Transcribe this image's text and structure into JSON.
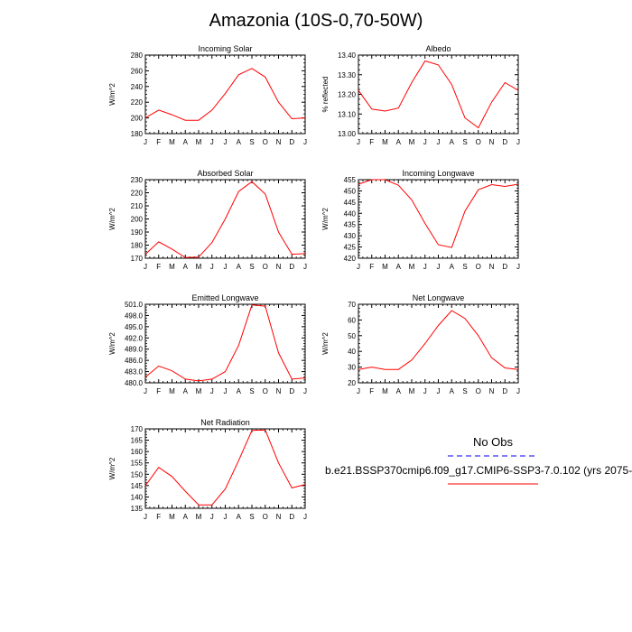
{
  "title": "Amazonia (10S-0,70-50W)",
  "legend": {
    "obs_label": "No Obs",
    "obs_color": "#0000ff",
    "model_label": "b.e21.BSSP370cmip6.f09_g17.CMIP6-SSP3-7.0.102 (yrs 2075-",
    "model_color": "#ff0000"
  },
  "chart_data": [
    {
      "type": "line",
      "title": "Incoming Solar",
      "ylabel": "W/m^2",
      "categories": [
        "J",
        "F",
        "M",
        "A",
        "M",
        "J",
        "J",
        "A",
        "S",
        "O",
        "N",
        "D",
        "J"
      ],
      "ylim": [
        180,
        280
      ],
      "yticks": [
        "180",
        "200",
        "220",
        "240",
        "260",
        "280"
      ],
      "values": [
        200,
        210,
        204,
        197,
        197,
        210,
        231,
        255,
        263,
        252,
        220,
        199,
        200
      ]
    },
    {
      "type": "line",
      "title": "Albedo",
      "ylabel": "% reflected",
      "categories": [
        "J",
        "F",
        "M",
        "A",
        "M",
        "J",
        "J",
        "A",
        "S",
        "O",
        "N",
        "D",
        "J"
      ],
      "ylim": [
        13.0,
        13.4
      ],
      "yticks": [
        "13.00",
        "13.10",
        "13.20",
        "13.30",
        "13.40"
      ],
      "values": [
        13.22,
        13.125,
        13.115,
        13.13,
        13.26,
        13.37,
        13.35,
        13.25,
        13.08,
        13.03,
        13.16,
        13.26,
        13.22
      ]
    },
    {
      "type": "line",
      "title": "Absorbed Solar",
      "ylabel": "W/m^2",
      "categories": [
        "J",
        "F",
        "M",
        "A",
        "M",
        "J",
        "J",
        "A",
        "S",
        "O",
        "N",
        "D",
        "J"
      ],
      "ylim": [
        170,
        230
      ],
      "yticks": [
        "170",
        "180",
        "190",
        "200",
        "210",
        "220",
        "230"
      ],
      "values": [
        173,
        182.5,
        177,
        170.5,
        170.8,
        182,
        200,
        221,
        228.5,
        219,
        190,
        173,
        173.5
      ]
    },
    {
      "type": "line",
      "title": "Incoming Longwave",
      "ylabel": "W/m^2",
      "categories": [
        "J",
        "F",
        "M",
        "A",
        "M",
        "J",
        "J",
        "A",
        "S",
        "O",
        "N",
        "D",
        "J"
      ],
      "ylim": [
        420,
        455
      ],
      "yticks": [
        "420",
        "425",
        "430",
        "435",
        "440",
        "445",
        "450",
        "455"
      ],
      "values": [
        453,
        455,
        455,
        452.5,
        446,
        435.5,
        426,
        424.8,
        441,
        450.5,
        452.8,
        452,
        453
      ]
    },
    {
      "type": "line",
      "title": "Emitted Longwave",
      "ylabel": "W/m^2",
      "categories": [
        "J",
        "F",
        "M",
        "A",
        "M",
        "J",
        "J",
        "A",
        "S",
        "O",
        "N",
        "D",
        "J"
      ],
      "ylim": [
        480.0,
        501.0
      ],
      "yticks": [
        "480.0",
        "483.0",
        "486.0",
        "489.0",
        "492.0",
        "495.0",
        "498.0",
        "501.0"
      ],
      "values": [
        481.5,
        484.5,
        483.2,
        481.0,
        480.5,
        481.0,
        483.0,
        490.0,
        500.8,
        500.5,
        488.0,
        481.0,
        481.3
      ]
    },
    {
      "type": "line",
      "title": "Net Longwave",
      "ylabel": "W/m^2",
      "categories": [
        "J",
        "F",
        "M",
        "A",
        "M",
        "J",
        "J",
        "A",
        "S",
        "O",
        "N",
        "D",
        "J"
      ],
      "ylim": [
        20,
        70
      ],
      "yticks": [
        "20",
        "30",
        "40",
        "50",
        "60",
        "70"
      ],
      "values": [
        28.5,
        30,
        28.5,
        28.5,
        34.5,
        45,
        56.5,
        66,
        61,
        50,
        36,
        29.5,
        28.5
      ]
    },
    {
      "type": "line",
      "title": "Net Radiation",
      "ylabel": "W/m^2",
      "categories": [
        "J",
        "F",
        "M",
        "A",
        "M",
        "J",
        "J",
        "A",
        "S",
        "O",
        "N",
        "D",
        "J"
      ],
      "ylim": [
        135,
        170
      ],
      "yticks": [
        "135",
        "140",
        "145",
        "150",
        "155",
        "160",
        "165",
        "170"
      ],
      "values": [
        145,
        153,
        149,
        142.5,
        136.5,
        136.5,
        143.5,
        156,
        169.3,
        169.5,
        155,
        144,
        145.5
      ]
    }
  ]
}
